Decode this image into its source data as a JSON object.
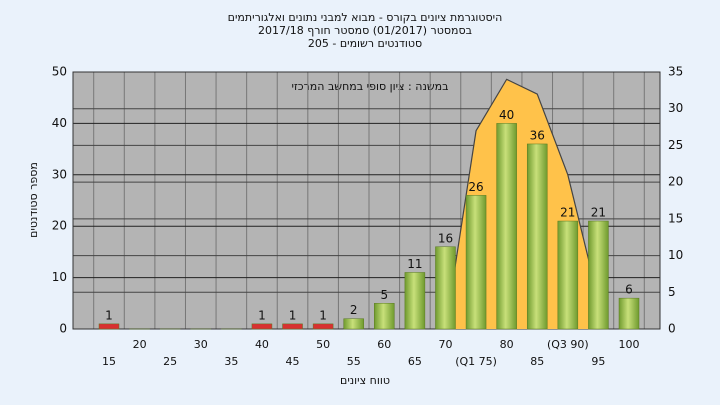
{
  "chart_data": {
    "type": "bar",
    "title": [
      "היסטוגרמת ציונים בקורס - מבוא למבני נתונים ואלגוריתמים",
      "בסמסטר  (01/2017)  סמסטר חורף  2017/18",
      "סטודנטים רשומים - 205"
    ],
    "annotation": "במשנה : ציון סופי במחשב המרכזי",
    "xlabel": "טווח ציונים",
    "ylabel": "מספר סטודנטים",
    "categories": [
      "15",
      "20",
      "25",
      "30",
      "35",
      "40",
      "45",
      "50",
      "55",
      "60",
      "65",
      "70",
      "(Q1 75)",
      "80",
      "85",
      "(Q3 90)",
      "95",
      "100"
    ],
    "series": [
      {
        "type": "bar",
        "colors": [
          "#d83030",
          "#9cc050",
          "#9cc050",
          "#9cc050",
          "#9cc050",
          "#d83030",
          "#d83030",
          "#d83030",
          "#9cc050",
          "#9cc050",
          "#9cc050",
          "#9cc050",
          "#9cc050",
          "#9cc050",
          "#9cc050",
          "#9cc050",
          "#9cc050",
          "#9cc050"
        ],
        "values": [
          1,
          0,
          0,
          0,
          0,
          1,
          1,
          1,
          2,
          5,
          11,
          16,
          26,
          40,
          36,
          21,
          21,
          6
        ]
      },
      {
        "type": "area",
        "axis": "y2",
        "color": "#ffc24a",
        "line_color": "#444444",
        "values": [
          null,
          null,
          null,
          null,
          null,
          null,
          null,
          null,
          null,
          null,
          null,
          0,
          27,
          34,
          32,
          21,
          4,
          null
        ]
      }
    ],
    "ylim": [
      0,
      50
    ],
    "yticks": [
      0,
      10,
      20,
      30,
      40,
      50
    ],
    "y2lim": [
      0,
      35
    ],
    "y2ticks": [
      0,
      5,
      10,
      15,
      20,
      25,
      30,
      35
    ],
    "grid": true
  }
}
